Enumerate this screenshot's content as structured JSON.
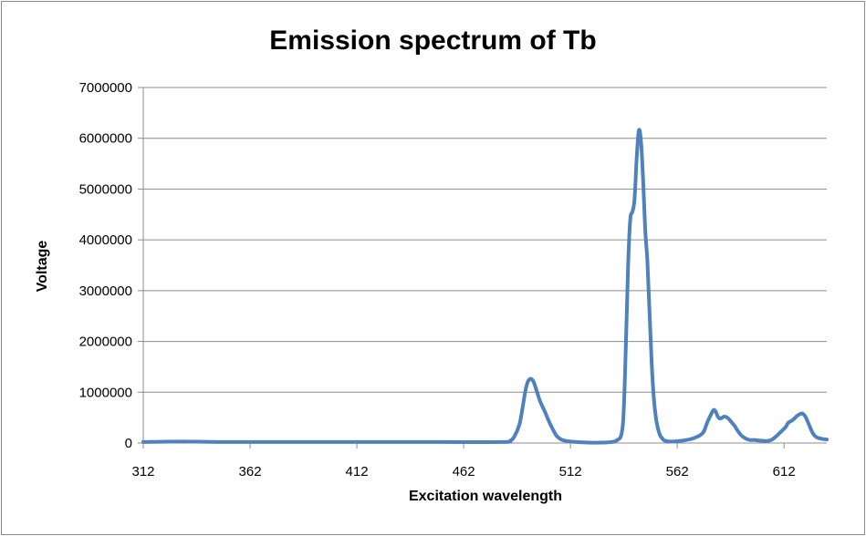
{
  "chart_data": {
    "type": "line",
    "title": "Emission spectrum of Tb",
    "xlabel": "Excitation wavelength",
    "ylabel": "Voltage",
    "xlim": [
      312,
      632
    ],
    "ylim": [
      0,
      7000000
    ],
    "x_ticks": [
      "312",
      "362",
      "412",
      "462",
      "512",
      "562",
      "612"
    ],
    "y_ticks": [
      "0",
      "1000000",
      "2000000",
      "3000000",
      "4000000",
      "5000000",
      "6000000",
      "7000000"
    ],
    "grid": "horizontal",
    "legend": "none",
    "series": [
      {
        "color": "#4f81bd",
        "x": [
          312,
          330,
          350,
          400,
          450,
          480,
          484,
          486,
          488,
          489,
          490,
          491,
          492,
          493,
          494,
          495,
          496,
          497,
          498,
          500,
          502,
          504,
          506,
          510,
          520,
          530,
          534,
          536,
          537,
          538,
          539,
          540,
          541,
          542,
          543,
          544,
          545,
          546,
          547,
          548,
          549,
          550,
          551,
          552,
          553,
          554,
          555,
          556,
          558,
          560,
          565,
          570,
          574,
          576,
          578,
          579,
          580,
          581,
          582,
          583,
          584,
          585,
          586,
          587,
          588,
          589,
          590,
          592,
          594,
          596,
          598,
          600,
          604,
          606,
          608,
          610,
          612,
          613,
          614,
          616,
          618,
          620,
          621,
          622,
          623,
          624,
          625,
          626,
          627,
          628,
          630,
          632
        ],
        "y": [
          20000,
          30000,
          20000,
          20000,
          20000,
          20000,
          50000,
          150000,
          350000,
          550000,
          800000,
          1050000,
          1200000,
          1260000,
          1250000,
          1180000,
          1050000,
          920000,
          800000,
          620000,
          420000,
          250000,
          120000,
          40000,
          10000,
          15000,
          60000,
          200000,
          700000,
          2000000,
          3500000,
          4400000,
          4550000,
          4800000,
          5600000,
          6150000,
          5950000,
          5200000,
          4200000,
          3600000,
          2600000,
          1600000,
          900000,
          500000,
          280000,
          150000,
          90000,
          50000,
          30000,
          30000,
          50000,
          100000,
          200000,
          400000,
          580000,
          650000,
          620000,
          520000,
          480000,
          500000,
          520000,
          510000,
          480000,
          430000,
          380000,
          330000,
          260000,
          150000,
          90000,
          60000,
          60000,
          50000,
          40000,
          60000,
          120000,
          200000,
          280000,
          330000,
          400000,
          450000,
          530000,
          580000,
          570000,
          520000,
          430000,
          330000,
          230000,
          160000,
          120000,
          100000,
          80000,
          70000
        ]
      }
    ]
  }
}
